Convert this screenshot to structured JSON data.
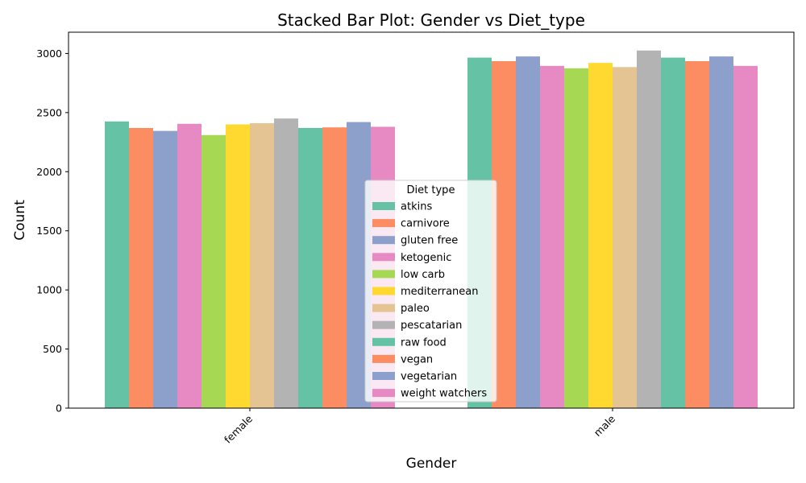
{
  "chart_data": {
    "type": "bar",
    "title": "Stacked Bar Plot: Gender vs Diet_type",
    "xlabel": "Gender",
    "ylabel": "Count",
    "categories": [
      "female",
      "male"
    ],
    "ylim": [
      0,
      3180
    ],
    "yticks": [
      0,
      500,
      1000,
      1500,
      2000,
      2500,
      3000
    ],
    "grid": false,
    "legend": {
      "title": "Diet type",
      "placement": "center"
    },
    "series": [
      {
        "name": "atkins",
        "color": "#66c2a5",
        "values": [
          2425,
          2965
        ]
      },
      {
        "name": "carnivore",
        "color": "#fc8d62",
        "values": [
          2370,
          2935
        ]
      },
      {
        "name": "gluten free",
        "color": "#8da0cb",
        "values": [
          2345,
          2975
        ]
      },
      {
        "name": "ketogenic",
        "color": "#e78ac3",
        "values": [
          2405,
          2895
        ]
      },
      {
        "name": "low carb",
        "color": "#a6d854",
        "values": [
          2310,
          2875
        ]
      },
      {
        "name": "mediterranean",
        "color": "#ffd92f",
        "values": [
          2400,
          2920
        ]
      },
      {
        "name": "paleo",
        "color": "#e5c494",
        "values": [
          2410,
          2885
        ]
      },
      {
        "name": "pescatarian",
        "color": "#b3b3b3",
        "values": [
          2450,
          3025
        ]
      },
      {
        "name": "raw food",
        "color": "#66c2a5",
        "values": [
          2370,
          2965
        ]
      },
      {
        "name": "vegan",
        "color": "#fc8d62",
        "values": [
          2375,
          2935
        ]
      },
      {
        "name": "vegetarian",
        "color": "#8da0cb",
        "values": [
          2420,
          2975
        ]
      },
      {
        "name": "weight watchers",
        "color": "#e78ac3",
        "values": [
          2380,
          2895
        ]
      }
    ]
  }
}
